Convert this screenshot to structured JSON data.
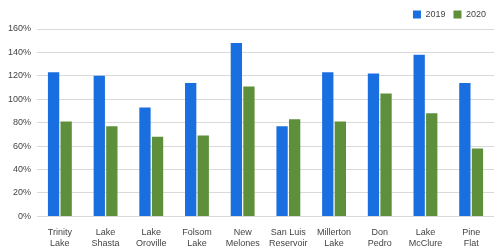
{
  "chart_data": {
    "type": "bar",
    "categories": [
      "Trinity Lake",
      "Lake Shasta",
      "Lake Oroville",
      "Folsom Lake",
      "New Melones",
      "San Luis Reservoir",
      "Millerton Lake",
      "Don Pedro",
      "Lake McClure",
      "Pine Flat"
    ],
    "series": [
      {
        "name": "2019",
        "color": "#1a6fe0",
        "values": [
          123,
          120,
          93,
          114,
          148,
          77,
          123,
          122,
          138,
          114
        ]
      },
      {
        "name": "2020",
        "color": "#5e8f3b",
        "values": [
          81,
          77,
          68,
          69,
          111,
          83,
          81,
          105,
          88,
          58
        ]
      }
    ],
    "ylim": [
      0,
      160
    ],
    "yticks": [
      {
        "value": 0,
        "label": "0%"
      },
      {
        "value": 20,
        "label": "20%"
      },
      {
        "value": 40,
        "label": "40%"
      },
      {
        "value": 60,
        "label": "60%"
      },
      {
        "value": 80,
        "label": "80%"
      },
      {
        "value": 100,
        "label": "100%"
      },
      {
        "value": 120,
        "label": "120%"
      },
      {
        "value": 140,
        "label": "140%"
      },
      {
        "value": 160,
        "label": "160%"
      }
    ],
    "grid": true,
    "legend": "top-right"
  }
}
